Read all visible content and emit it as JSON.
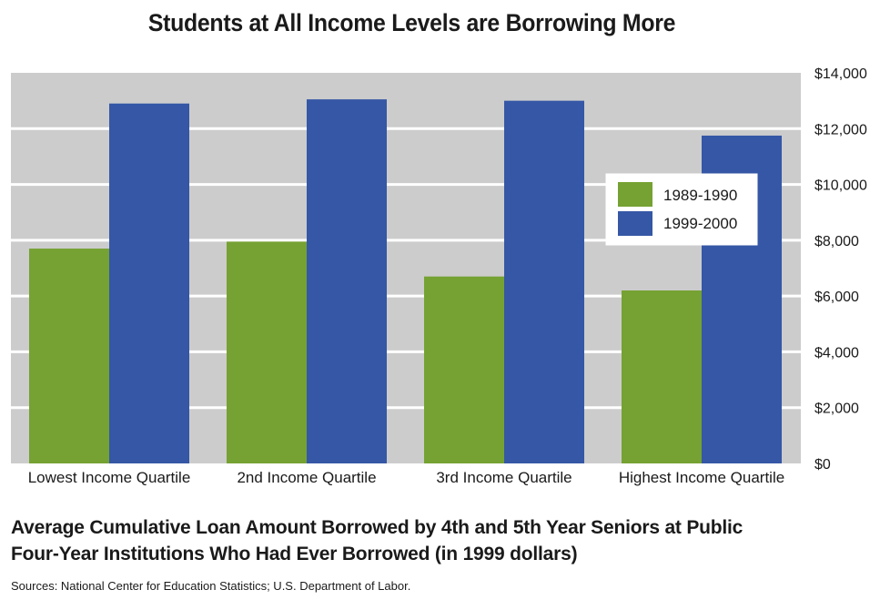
{
  "chart_data": {
    "type": "bar",
    "title": "Students at All Income Levels are Borrowing More",
    "categories": [
      "Lowest Income Quartile",
      "2nd Income Quartile",
      "3rd Income Quartile",
      "Highest Income Quartile"
    ],
    "series": [
      {
        "name": "1989-1990",
        "color": "#75a232",
        "values": [
          7700,
          7950,
          6700,
          6200
        ]
      },
      {
        "name": "1999-2000",
        "color": "#3557a5",
        "values": [
          12900,
          13050,
          13000,
          11750
        ]
      }
    ],
    "ylim": [
      0,
      14000
    ],
    "yticks": [
      "$0",
      "$2,000",
      "$4,000",
      "$6,000",
      "$8,000",
      "$10,000",
      "$12,000",
      "$14,000"
    ],
    "ytick_values": [
      0,
      2000,
      4000,
      6000,
      8000,
      10000,
      12000,
      14000
    ],
    "grid": true,
    "plot_background": "#cccccc",
    "gridline_color": "#ffffff",
    "legend_position": "right"
  },
  "caption": {
    "line1": "Average Cumulative Loan Amount Borrowed by 4th and 5th Year Seniors at Public",
    "line2": "Four-Year Institutions Who Had Ever Borrowed (in 1999 dollars)"
  },
  "sources": "Sources: National Center for Education Statistics; U.S. Department of Labor."
}
